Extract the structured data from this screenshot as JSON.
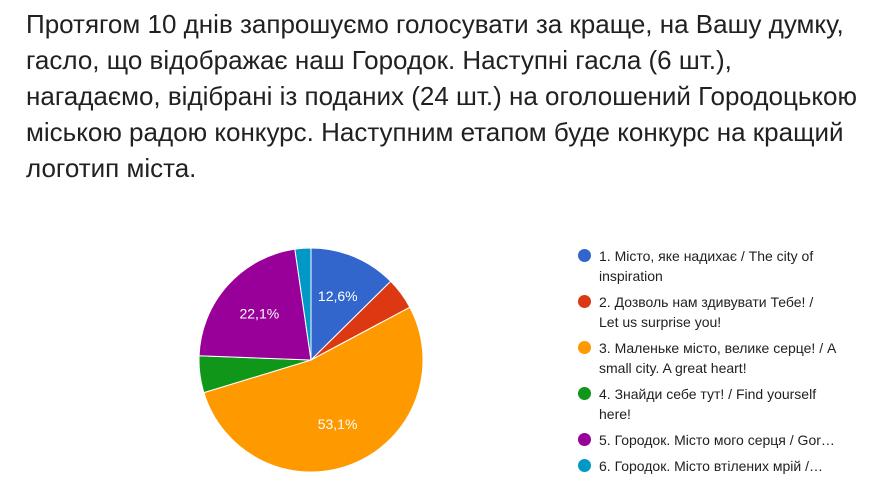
{
  "title": "Протягом 10 днів запрошуємо голосувати за краще, на Вашу думку, гасло, що відображає наш Городок. Наступні гасла (6 шт.), нагадаємо, відібрані із поданих (24 шт.) на оголошений Городоцькою міською радою конкурс. Наступним етапом буде конкурс на кращий логотип міста.",
  "chart_data": {
    "type": "pie",
    "legend_position": "right",
    "slices": [
      {
        "label_line1": "1. Місто, яке надихає / The city of",
        "label_line2": "inspiration",
        "value": 12.6,
        "color": "#3366cc",
        "data_label": "12,6%"
      },
      {
        "label_line1": "2. Дозволь нам здивувати Тебе! /",
        "label_line2": "Let us surprise you!",
        "value": 4.6,
        "color": "#dc3912",
        "data_label": ""
      },
      {
        "label_line1": "3. Маленьке місто, велике серце! / A",
        "label_line2": "small city. A great heart!",
        "value": 53.1,
        "color": "#ff9900",
        "data_label": "53,1%"
      },
      {
        "label_line1": "4. Знайди себе тут! / Find yourself",
        "label_line2": "here!",
        "value": 5.3,
        "color": "#109618",
        "data_label": ""
      },
      {
        "label_line1": "5. Городок. Місто мого серця / Gor…",
        "label_line2": "",
        "value": 22.1,
        "color": "#990099",
        "data_label": "22,1%"
      },
      {
        "label_line1": "6. Городок. Місто втілених мрій /…",
        "label_line2": "",
        "value": 2.3,
        "color": "#0099c6",
        "data_label": ""
      }
    ]
  }
}
